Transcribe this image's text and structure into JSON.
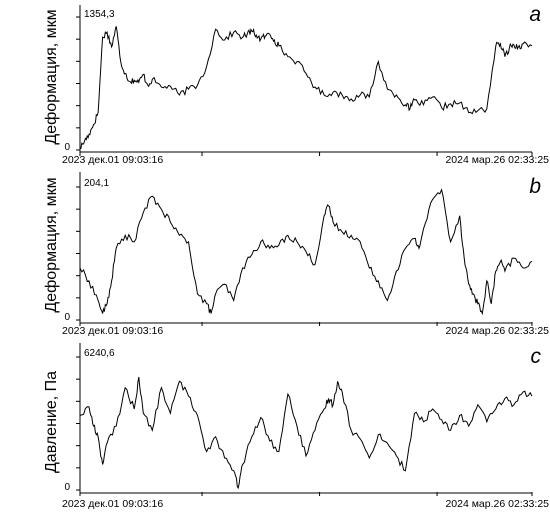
{
  "chart_data": [
    {
      "type": "line",
      "panel_letter": "a",
      "ylabel": "Деформация, мкм",
      "max_value_label": "1354,3",
      "zero_label": "0",
      "x_start_label": "2023 дек.01 09:03:16",
      "x_end_label": "2024 мар.26 02:33:25",
      "ylim": [
        0,
        1354.3
      ],
      "series": [
        {
          "x": [
            0,
            0.01,
            0.02,
            0.03,
            0.04,
            0.05,
            0.06,
            0.07,
            0.08,
            0.09,
            0.1,
            0.11,
            0.12,
            0.13,
            0.14,
            0.15,
            0.16,
            0.18,
            0.2,
            0.22,
            0.24,
            0.26,
            0.28,
            0.3,
            0.32,
            0.34,
            0.36,
            0.37,
            0.38,
            0.39,
            0.4,
            0.41,
            0.42,
            0.43,
            0.44,
            0.46,
            0.48,
            0.5,
            0.52,
            0.54,
            0.56,
            0.58,
            0.6,
            0.62,
            0.64,
            0.66,
            0.68,
            0.7,
            0.72,
            0.73,
            0.74,
            0.76,
            0.78,
            0.8,
            0.82,
            0.84,
            0.86,
            0.88,
            0.9,
            0.92,
            0.93,
            0.94,
            0.95,
            0.96,
            0.97,
            0.98,
            1.0
          ],
          "values": [
            20,
            90,
            160,
            260,
            380,
            1150,
            1200,
            1050,
            1260,
            900,
            780,
            700,
            710,
            690,
            770,
            660,
            720,
            640,
            650,
            560,
            620,
            660,
            850,
            1230,
            1120,
            1200,
            1150,
            1180,
            1210,
            1170,
            1130,
            1160,
            1180,
            1120,
            1060,
            950,
            900,
            780,
            640,
            560,
            590,
            560,
            520,
            560,
            540,
            900,
            620,
            560,
            460,
            420,
            510,
            460,
            540,
            430,
            470,
            480,
            380,
            400,
            420,
            1060,
            1080,
            950,
            1040,
            1070,
            1050,
            1080,
            1060
          ]
        }
      ]
    },
    {
      "type": "line",
      "panel_letter": "b",
      "ylabel": "Деформация, мкм",
      "max_value_label": "204,1",
      "zero_label": "0",
      "x_start_label": "2023 дек.01 09:03:16",
      "x_end_label": "2024 мар.26 02:33:25",
      "ylim": [
        0,
        204.1
      ],
      "series": [
        {
          "x": [
            0,
            0.02,
            0.04,
            0.05,
            0.06,
            0.07,
            0.08,
            0.1,
            0.12,
            0.14,
            0.16,
            0.18,
            0.2,
            0.22,
            0.24,
            0.26,
            0.28,
            0.29,
            0.3,
            0.32,
            0.34,
            0.36,
            0.38,
            0.4,
            0.42,
            0.44,
            0.46,
            0.48,
            0.5,
            0.52,
            0.54,
            0.55,
            0.56,
            0.58,
            0.6,
            0.62,
            0.64,
            0.66,
            0.68,
            0.7,
            0.72,
            0.74,
            0.75,
            0.76,
            0.78,
            0.8,
            0.82,
            0.84,
            0.85,
            0.86,
            0.87,
            0.88,
            0.89,
            0.9,
            0.91,
            0.92,
            0.93,
            0.94,
            0.96,
            0.98,
            1.0
          ],
          "values": [
            80,
            60,
            30,
            10,
            25,
            60,
            110,
            130,
            120,
            165,
            190,
            170,
            150,
            130,
            120,
            40,
            25,
            10,
            40,
            55,
            30,
            80,
            100,
            120,
            110,
            115,
            130,
            120,
            105,
            85,
            160,
            175,
            150,
            135,
            130,
            120,
            80,
            60,
            30,
            75,
            110,
            125,
            110,
            140,
            185,
            200,
            120,
            160,
            95,
            55,
            40,
            25,
            10,
            60,
            25,
            75,
            90,
            75,
            95,
            80,
            90
          ]
        }
      ]
    },
    {
      "type": "line",
      "panel_letter": "c",
      "ylabel": "Давление, Па",
      "max_value_label": "6240,6",
      "zero_label": "0",
      "x_start_label": "2023 дек.01 09:03:16",
      "x_end_label": "2024 мар.26 02:33:25",
      "ylim": [
        0,
        6240.6
      ],
      "series": [
        {
          "x": [
            0,
            0.02,
            0.03,
            0.04,
            0.05,
            0.06,
            0.08,
            0.1,
            0.12,
            0.13,
            0.14,
            0.16,
            0.18,
            0.2,
            0.22,
            0.24,
            0.26,
            0.28,
            0.3,
            0.32,
            0.34,
            0.35,
            0.36,
            0.38,
            0.4,
            0.42,
            0.44,
            0.46,
            0.48,
            0.5,
            0.52,
            0.54,
            0.55,
            0.56,
            0.57,
            0.58,
            0.6,
            0.62,
            0.64,
            0.66,
            0.68,
            0.7,
            0.72,
            0.74,
            0.76,
            0.78,
            0.8,
            0.82,
            0.84,
            0.86,
            0.88,
            0.9,
            0.92,
            0.94,
            0.96,
            0.98,
            1.0
          ],
          "values": [
            3500,
            3900,
            3000,
            2500,
            1200,
            2200,
            3000,
            4800,
            3800,
            5300,
            3600,
            2800,
            4800,
            3600,
            5100,
            4400,
            3500,
            1800,
            2500,
            1500,
            900,
            100,
            1200,
            2500,
            3400,
            2300,
            1800,
            4500,
            3000,
            1600,
            2800,
            3800,
            4300,
            4000,
            5100,
            4600,
            2800,
            2400,
            1500,
            2600,
            2200,
            1600,
            900,
            3600,
            3200,
            3800,
            3300,
            2800,
            3500,
            3000,
            4000,
            3200,
            3800,
            4300,
            4000,
            4600,
            4400
          ]
        }
      ]
    }
  ]
}
